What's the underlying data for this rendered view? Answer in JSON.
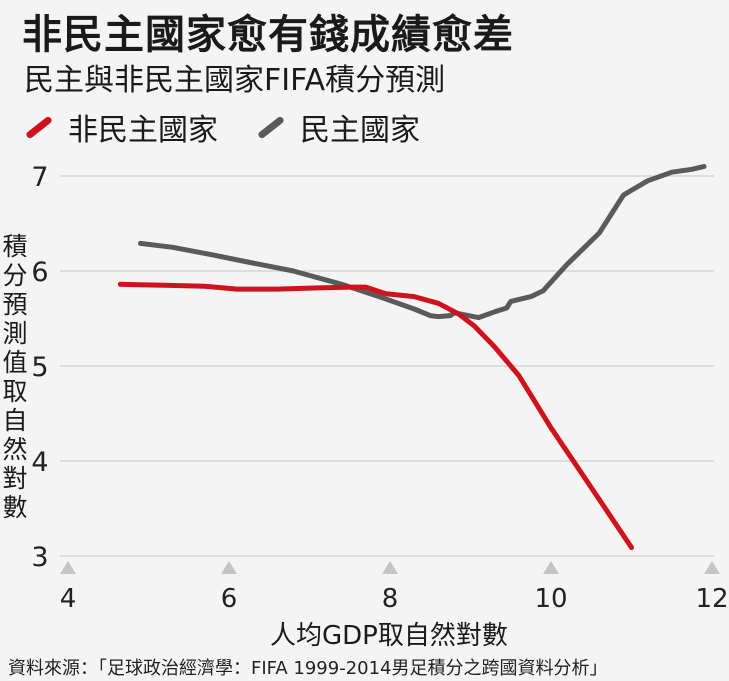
{
  "title": "非民主國家愈有錢成績愈差",
  "subtitle": "民主與非民主國家FIFA積分預測",
  "ylabel": "積分預測值取自然對數",
  "xlabel": "人均GDP取自然對數",
  "source": "資料來源：「足球政治經濟學：FIFA 1999-2014男足積分之跨國資料分析」",
  "colors": {
    "non_democratic": "#d0121f",
    "democratic": "#5a5a5a",
    "grid": "#cfcfcf",
    "tick_marker": "#c4c4c4"
  },
  "chart_data": {
    "type": "line",
    "title": "民主與非民主國家FIFA積分預測",
    "xlabel": "人均GDP取自然對數",
    "ylabel": "積分預測值取自然對數",
    "xlim": [
      4,
      12
    ],
    "ylim": [
      3,
      7
    ],
    "xticks": [
      4,
      6,
      8,
      10,
      12
    ],
    "yticks": [
      3,
      4,
      5,
      6,
      7
    ],
    "grid": "horizontal",
    "legend": "top-left",
    "series": [
      {
        "name": "非民主國家",
        "color": "#d0121f",
        "x": [
          4.65,
          5.2,
          5.7,
          6.1,
          6.6,
          7.0,
          7.5,
          7.7,
          7.95,
          8.3,
          8.6,
          8.85,
          9.05,
          9.3,
          9.6,
          10.0,
          10.5,
          11.0
        ],
        "y": [
          5.86,
          5.85,
          5.84,
          5.81,
          5.81,
          5.82,
          5.83,
          5.83,
          5.76,
          5.73,
          5.66,
          5.55,
          5.42,
          5.2,
          4.9,
          4.35,
          3.72,
          3.09
        ]
      },
      {
        "name": "民主國家",
        "color": "#5a5a5a",
        "x": [
          4.9,
          5.3,
          5.8,
          6.2,
          6.8,
          7.4,
          7.9,
          8.3,
          8.5,
          8.6,
          8.75,
          8.8,
          9.1,
          9.3,
          9.45,
          9.5,
          9.75,
          9.9,
          10.2,
          10.6,
          10.9,
          11.2,
          11.5,
          11.75,
          11.9
        ],
        "y": [
          6.29,
          6.25,
          6.17,
          6.1,
          6.0,
          5.86,
          5.72,
          5.6,
          5.53,
          5.52,
          5.53,
          5.56,
          5.51,
          5.57,
          5.61,
          5.68,
          5.73,
          5.79,
          6.07,
          6.4,
          6.8,
          6.95,
          7.04,
          7.07,
          7.1
        ]
      }
    ]
  }
}
